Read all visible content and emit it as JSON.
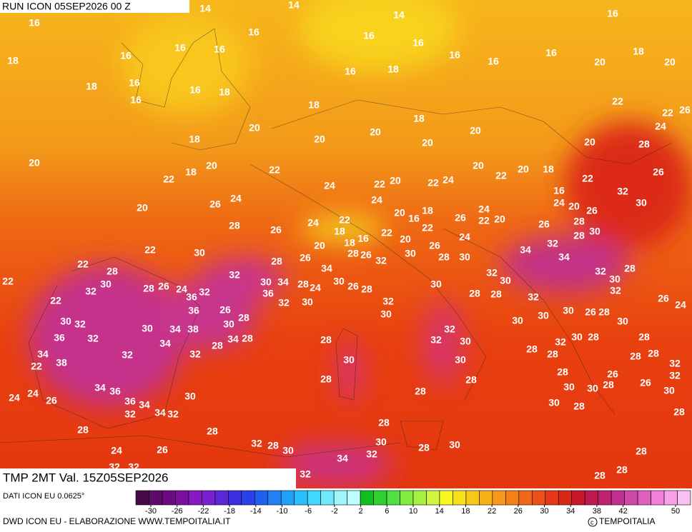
{
  "header": {
    "title": "RUN ICON 05SEP2026 00 Z"
  },
  "map": {
    "labels": [
      14,
      14,
      14,
      16,
      16,
      16,
      16,
      16,
      16,
      16,
      16,
      18,
      16,
      16,
      16,
      18,
      16,
      18,
      20,
      20,
      18,
      16,
      16,
      16,
      18,
      18,
      22,
      22,
      26,
      20,
      18,
      20,
      20,
      24,
      18,
      20,
      20,
      20,
      28,
      20,
      20,
      18,
      22,
      22,
      20,
      22,
      20,
      18,
      26,
      24,
      22,
      20,
      22,
      24,
      22,
      16,
      32,
      20,
      26,
      24,
      24,
      20,
      16,
      18,
      26,
      24,
      22,
      20,
      24,
      20,
      26,
      30,
      28,
      26,
      24,
      22,
      18,
      22,
      22,
      24,
      26,
      28,
      28,
      30,
      22,
      30,
      28,
      26,
      20,
      18,
      16,
      20,
      26,
      28,
      30,
      34,
      32,
      34,
      22,
      28,
      30,
      32,
      32,
      30,
      34,
      28,
      24,
      34,
      30,
      26,
      28,
      28,
      26,
      32,
      30,
      30,
      32,
      30,
      32,
      28,
      30,
      32,
      22,
      28,
      26,
      24,
      32,
      36,
      36,
      32,
      30,
      22,
      32,
      30,
      28,
      28,
      32,
      26,
      24,
      36,
      26,
      28,
      30,
      30,
      32,
      30,
      34,
      38,
      30,
      30,
      30,
      26,
      28,
      30,
      36,
      32,
      34,
      34,
      28,
      28,
      28,
      32,
      32,
      30,
      32,
      30,
      28,
      28,
      34,
      38,
      32,
      32,
      30,
      30,
      28,
      28,
      28,
      28,
      22,
      32,
      32,
      28,
      28,
      28,
      26,
      34,
      36,
      28,
      30,
      30,
      28,
      26,
      30,
      24,
      24,
      26,
      36,
      34,
      30,
      32,
      34,
      32,
      30,
      28,
      28,
      28,
      28,
      28,
      26,
      32,
      28,
      30,
      30,
      28,
      30,
      28,
      34,
      32,
      24,
      32,
      32,
      28,
      28,
      32
    ]
  },
  "footer": {
    "validity": "TMP 2MT Val. 15Z05SEP2026",
    "source": "DATI ICON EU 0.0625°",
    "credit": "DWD ICON EU - ELABORAZIONE WWW.TEMPOITALIA.IT",
    "logo": "TEMPOITALIA"
  },
  "legend": {
    "ticks": [
      -30,
      -26,
      -22,
      -18,
      -14,
      -10,
      -6,
      -2,
      2,
      6,
      10,
      14,
      18,
      22,
      26,
      30,
      34,
      38,
      42,
      50
    ]
  }
}
